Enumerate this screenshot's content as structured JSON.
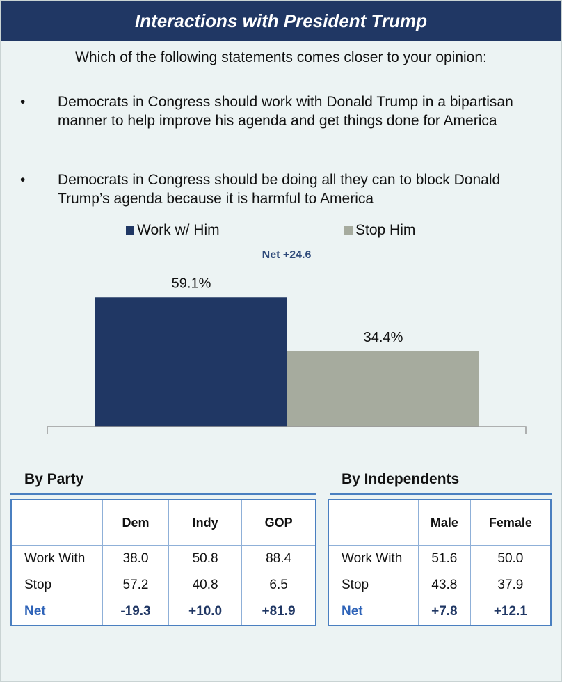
{
  "header": {
    "title": "Interactions with President Trump"
  },
  "question": "Which of the following statements comes closer to your opinion:",
  "bullets": [
    {
      "marker": "•",
      "text": "Democrats in Congress should work with Donald Trump in a bipartisan manner to help improve his agenda and get things done for America"
    },
    {
      "marker": "•",
      "text": "Democrats in Congress should be doing all they can to block Donald Trump’s agenda because it is harmful to America"
    }
  ],
  "colors": {
    "work": "#203764",
    "stop": "#a6ab9e",
    "accent": "#4a7fc0"
  },
  "chart_data": {
    "type": "bar",
    "categories": [
      "Work w/ Him",
      "Stop Him"
    ],
    "values": [
      59.1,
      34.4
    ],
    "data_labels": [
      "59.1%",
      "34.4%"
    ],
    "annotation": "Net +24.6",
    "legend": [
      "Work w/ Him",
      "Stop Him"
    ],
    "legend_position": "top",
    "ylim": [
      0,
      70
    ],
    "grid": false
  },
  "party": {
    "title": "By Party",
    "columns": [
      "",
      "Dem",
      "Indy",
      "GOP"
    ],
    "rows": [
      {
        "label": "Work With",
        "values": [
          "38.0",
          "50.8",
          "88.4"
        ]
      },
      {
        "label": "Stop",
        "values": [
          "57.2",
          "40.8",
          "6.5"
        ]
      },
      {
        "label": "Net",
        "values": [
          "-19.3",
          "+10.0",
          "+81.9"
        ]
      }
    ]
  },
  "independents": {
    "title": "By Independents",
    "columns": [
      "",
      "Male",
      "Female"
    ],
    "rows": [
      {
        "label": "Work With",
        "values": [
          "51.6",
          "50.0"
        ]
      },
      {
        "label": "Stop",
        "values": [
          "43.8",
          "37.9"
        ]
      },
      {
        "label": "Net",
        "values": [
          "+7.8",
          "+12.1"
        ]
      }
    ]
  }
}
